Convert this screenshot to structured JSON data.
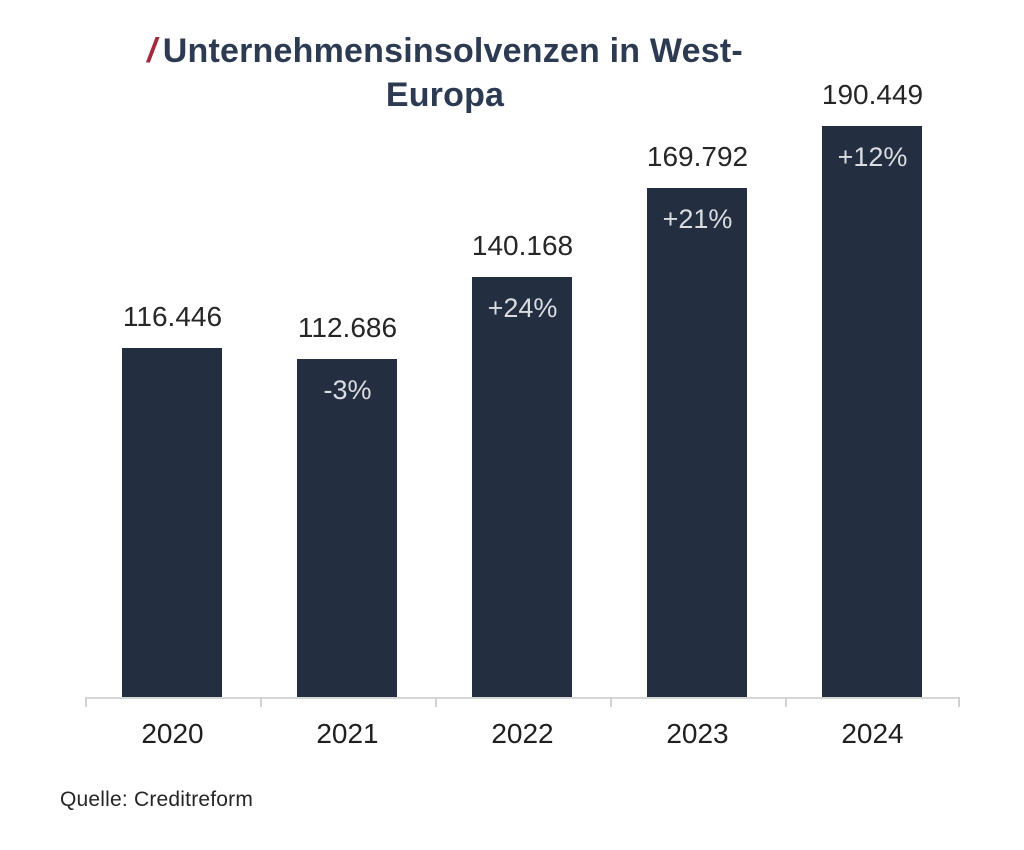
{
  "title": {
    "prefix": "/",
    "line1": "Unternehmensinsolvenzen in West-",
    "line2": "Europa"
  },
  "source": {
    "text": "Quelle: Creditreform"
  },
  "colors": {
    "bar": "#242e41",
    "title": "#2c3a52",
    "accent_slash": "#a2293e",
    "value_label": "#262626",
    "percent_label": "#d9dce1",
    "axis": "#d2d2d2"
  },
  "chart_data": {
    "type": "bar",
    "title": "Unternehmensinsolvenzen in West-Europa",
    "categories": [
      "2020",
      "2021",
      "2022",
      "2023",
      "2024"
    ],
    "values": [
      116446,
      112686,
      140168,
      169792,
      190449
    ],
    "value_labels": [
      "116.446",
      "112.686",
      "140.168",
      "169.792",
      "190.449"
    ],
    "change_labels": [
      "",
      "-3%",
      "+24%",
      "+21%",
      "+12%"
    ],
    "xlabel": "",
    "ylabel": "",
    "ylim": [
      0,
      190449
    ],
    "grid": false,
    "legend": false,
    "bar_color": "#242e41",
    "source": "Quelle: Creditreform"
  }
}
